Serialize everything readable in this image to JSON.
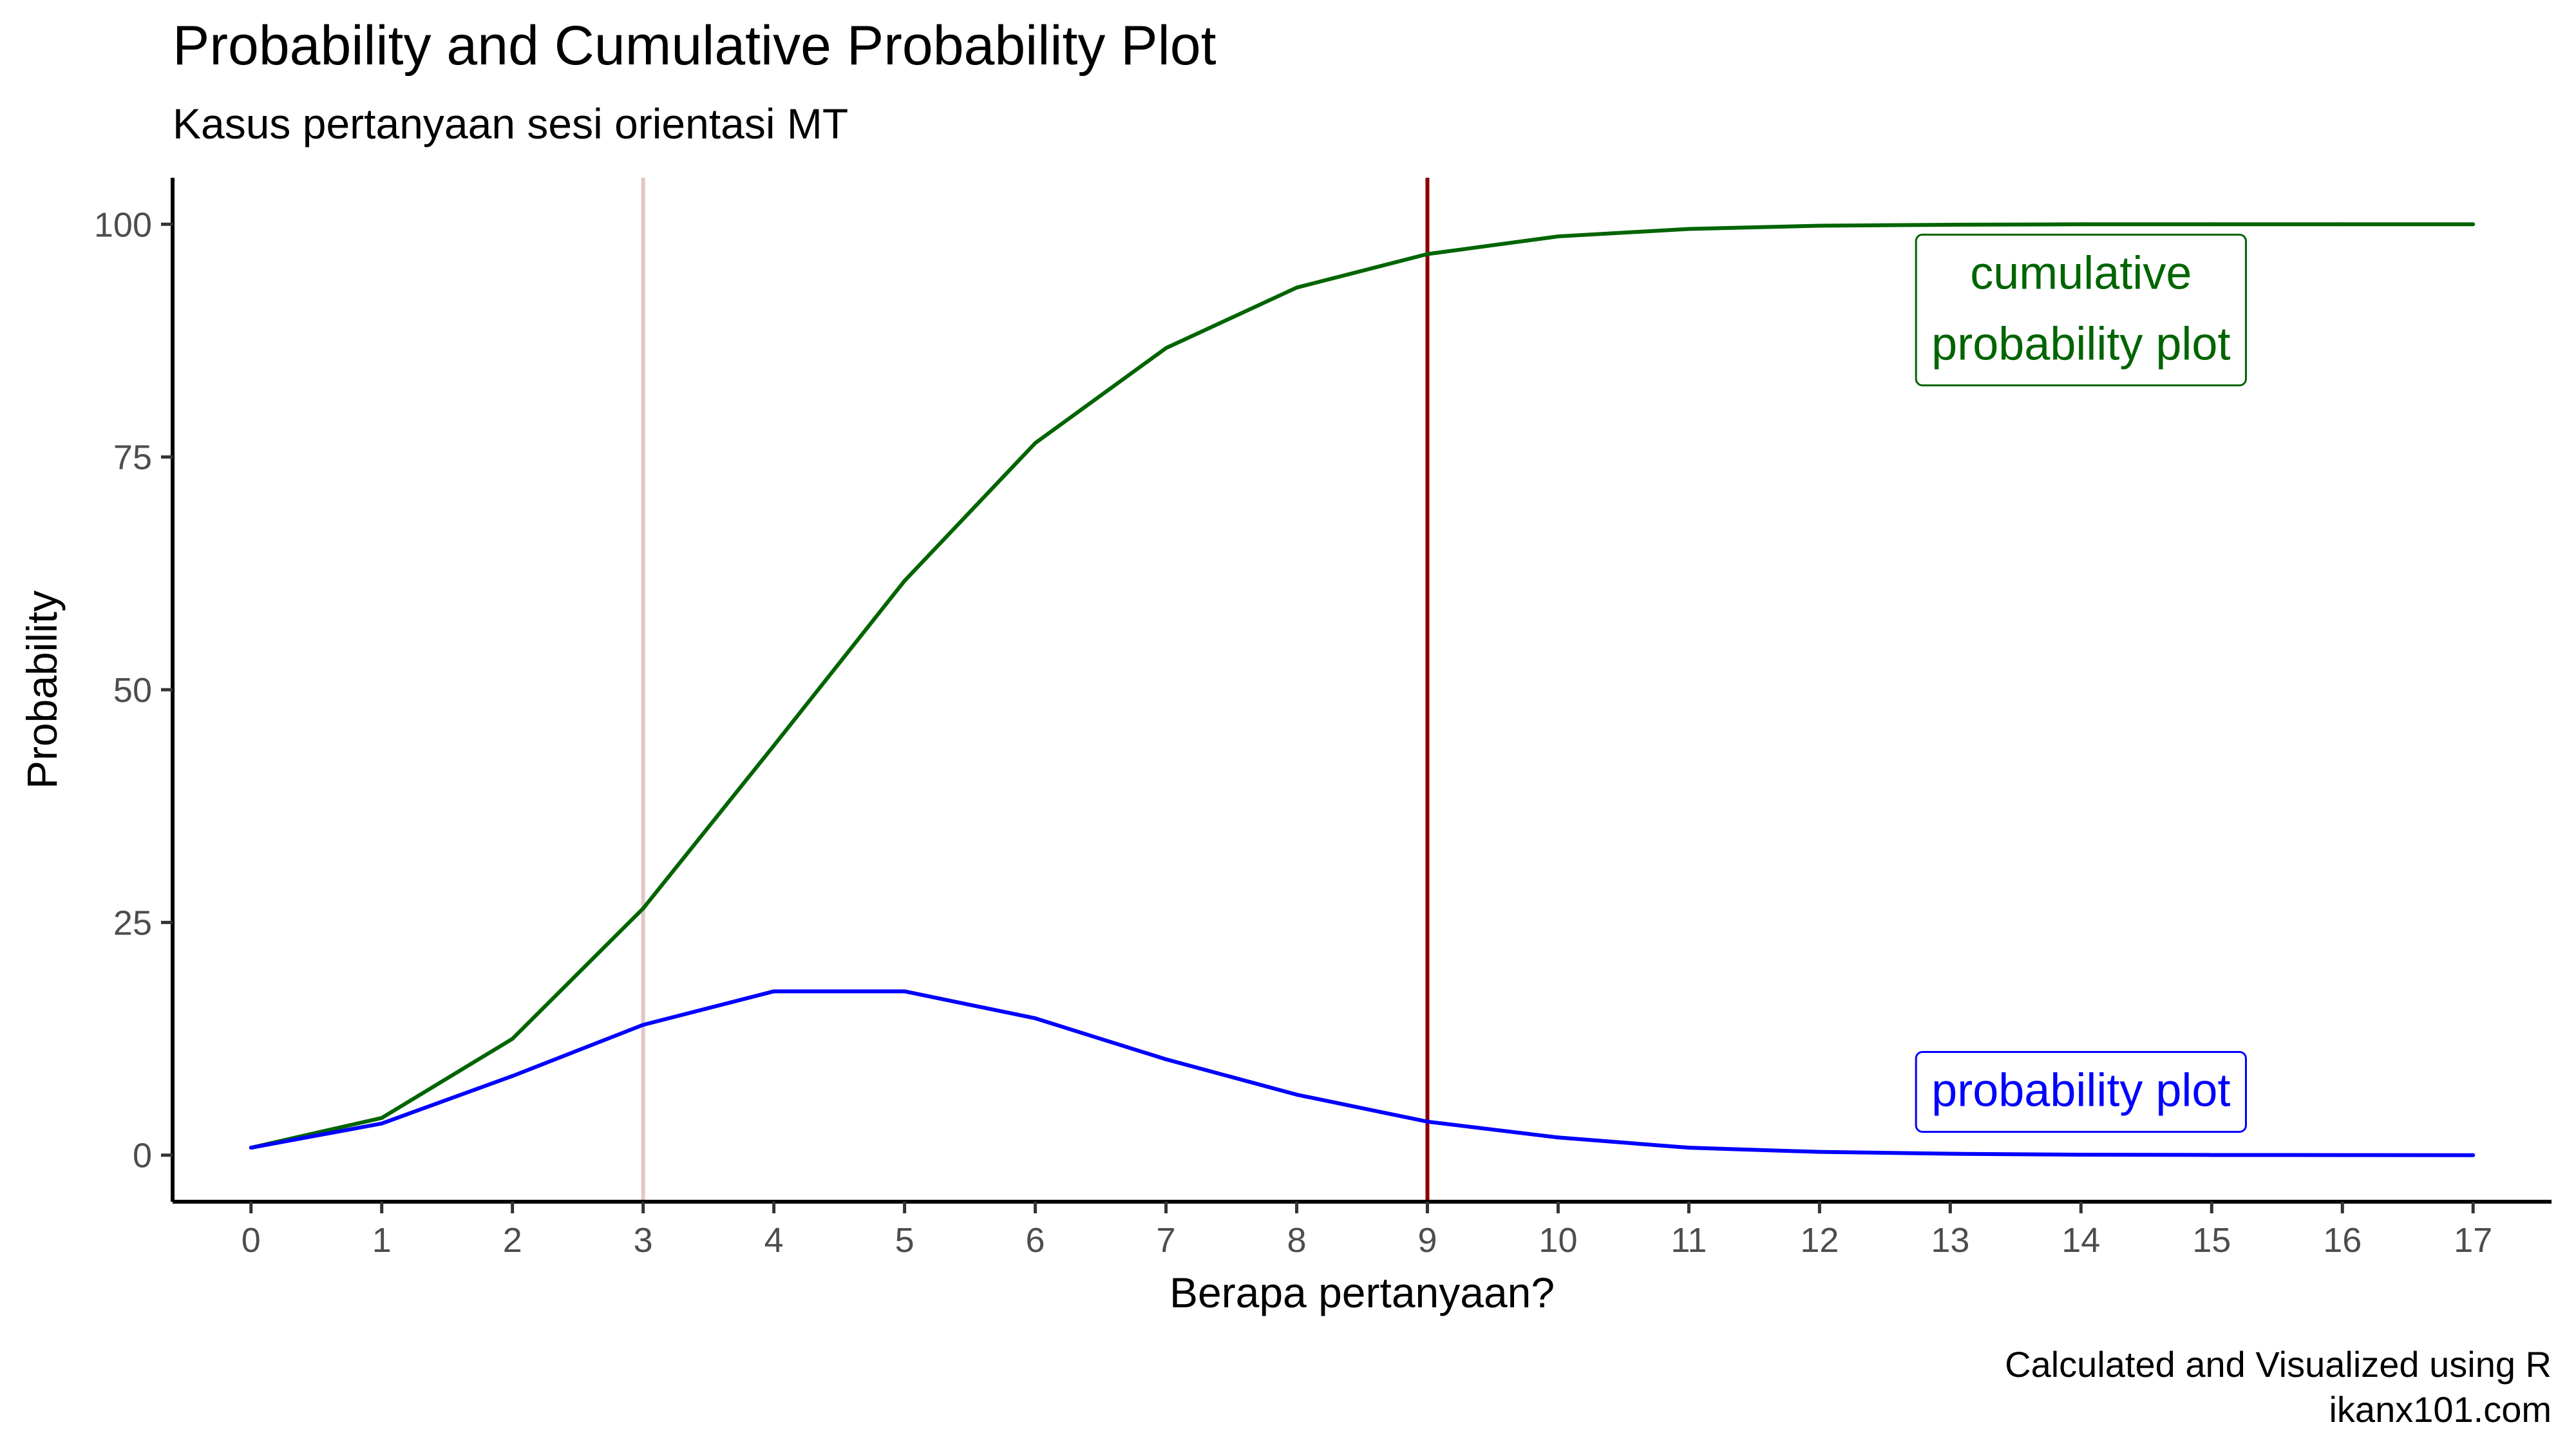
{
  "chart_data": {
    "type": "line",
    "title": "Probability and Cumulative Probability Plot",
    "subtitle": "Kasus pertanyaan sesi orientasi MT",
    "xlabel": "Berapa pertanyaan?",
    "ylabel": "Probability",
    "caption": [
      "Calculated and Visualized using R",
      "ikanx101.com"
    ],
    "x": [
      0,
      1,
      2,
      3,
      4,
      5,
      6,
      7,
      8,
      9,
      10,
      11,
      12,
      13,
      14,
      15,
      16,
      17
    ],
    "x_ticks": [
      "0",
      "1",
      "2",
      "3",
      "4",
      "5",
      "6",
      "7",
      "8",
      "9",
      "10",
      "11",
      "12",
      "13",
      "14",
      "15",
      "16",
      "17"
    ],
    "y_ticks": [
      "0",
      "25",
      "50",
      "75",
      "100"
    ],
    "xlim": [
      -0.6,
      17.6
    ],
    "ylim": [
      -5,
      105
    ],
    "grid": false,
    "series": [
      {
        "key": "cumulative",
        "color": "#006400",
        "values": [
          0.8,
          4.0,
          12.5,
          26.5,
          44.0,
          61.7,
          76.5,
          86.7,
          93.2,
          96.8,
          98.7,
          99.5,
          99.85,
          99.95,
          100.0,
          100.0,
          100.0,
          100.0
        ]
      },
      {
        "key": "probability",
        "color": "#0000ff",
        "values": [
          0.8,
          3.4,
          8.5,
          14.0,
          17.6,
          17.6,
          14.7,
          10.3,
          6.5,
          3.6,
          1.9,
          0.8,
          0.35,
          0.15,
          0.05,
          0.02,
          0.01,
          0.0
        ]
      }
    ],
    "reference_lines": [
      {
        "x": 3,
        "color": "#e3c6c6"
      },
      {
        "x": 9,
        "color": "#8b0000"
      }
    ],
    "annotations": [
      {
        "series": "cumulative",
        "lines": [
          "cumulative",
          "probability plot"
        ],
        "x": 14,
        "y": 91,
        "color": "#006400"
      },
      {
        "series": "probability",
        "lines": [
          "probability plot"
        ],
        "x": 14,
        "y": 7,
        "color": "#0000ff"
      }
    ]
  }
}
